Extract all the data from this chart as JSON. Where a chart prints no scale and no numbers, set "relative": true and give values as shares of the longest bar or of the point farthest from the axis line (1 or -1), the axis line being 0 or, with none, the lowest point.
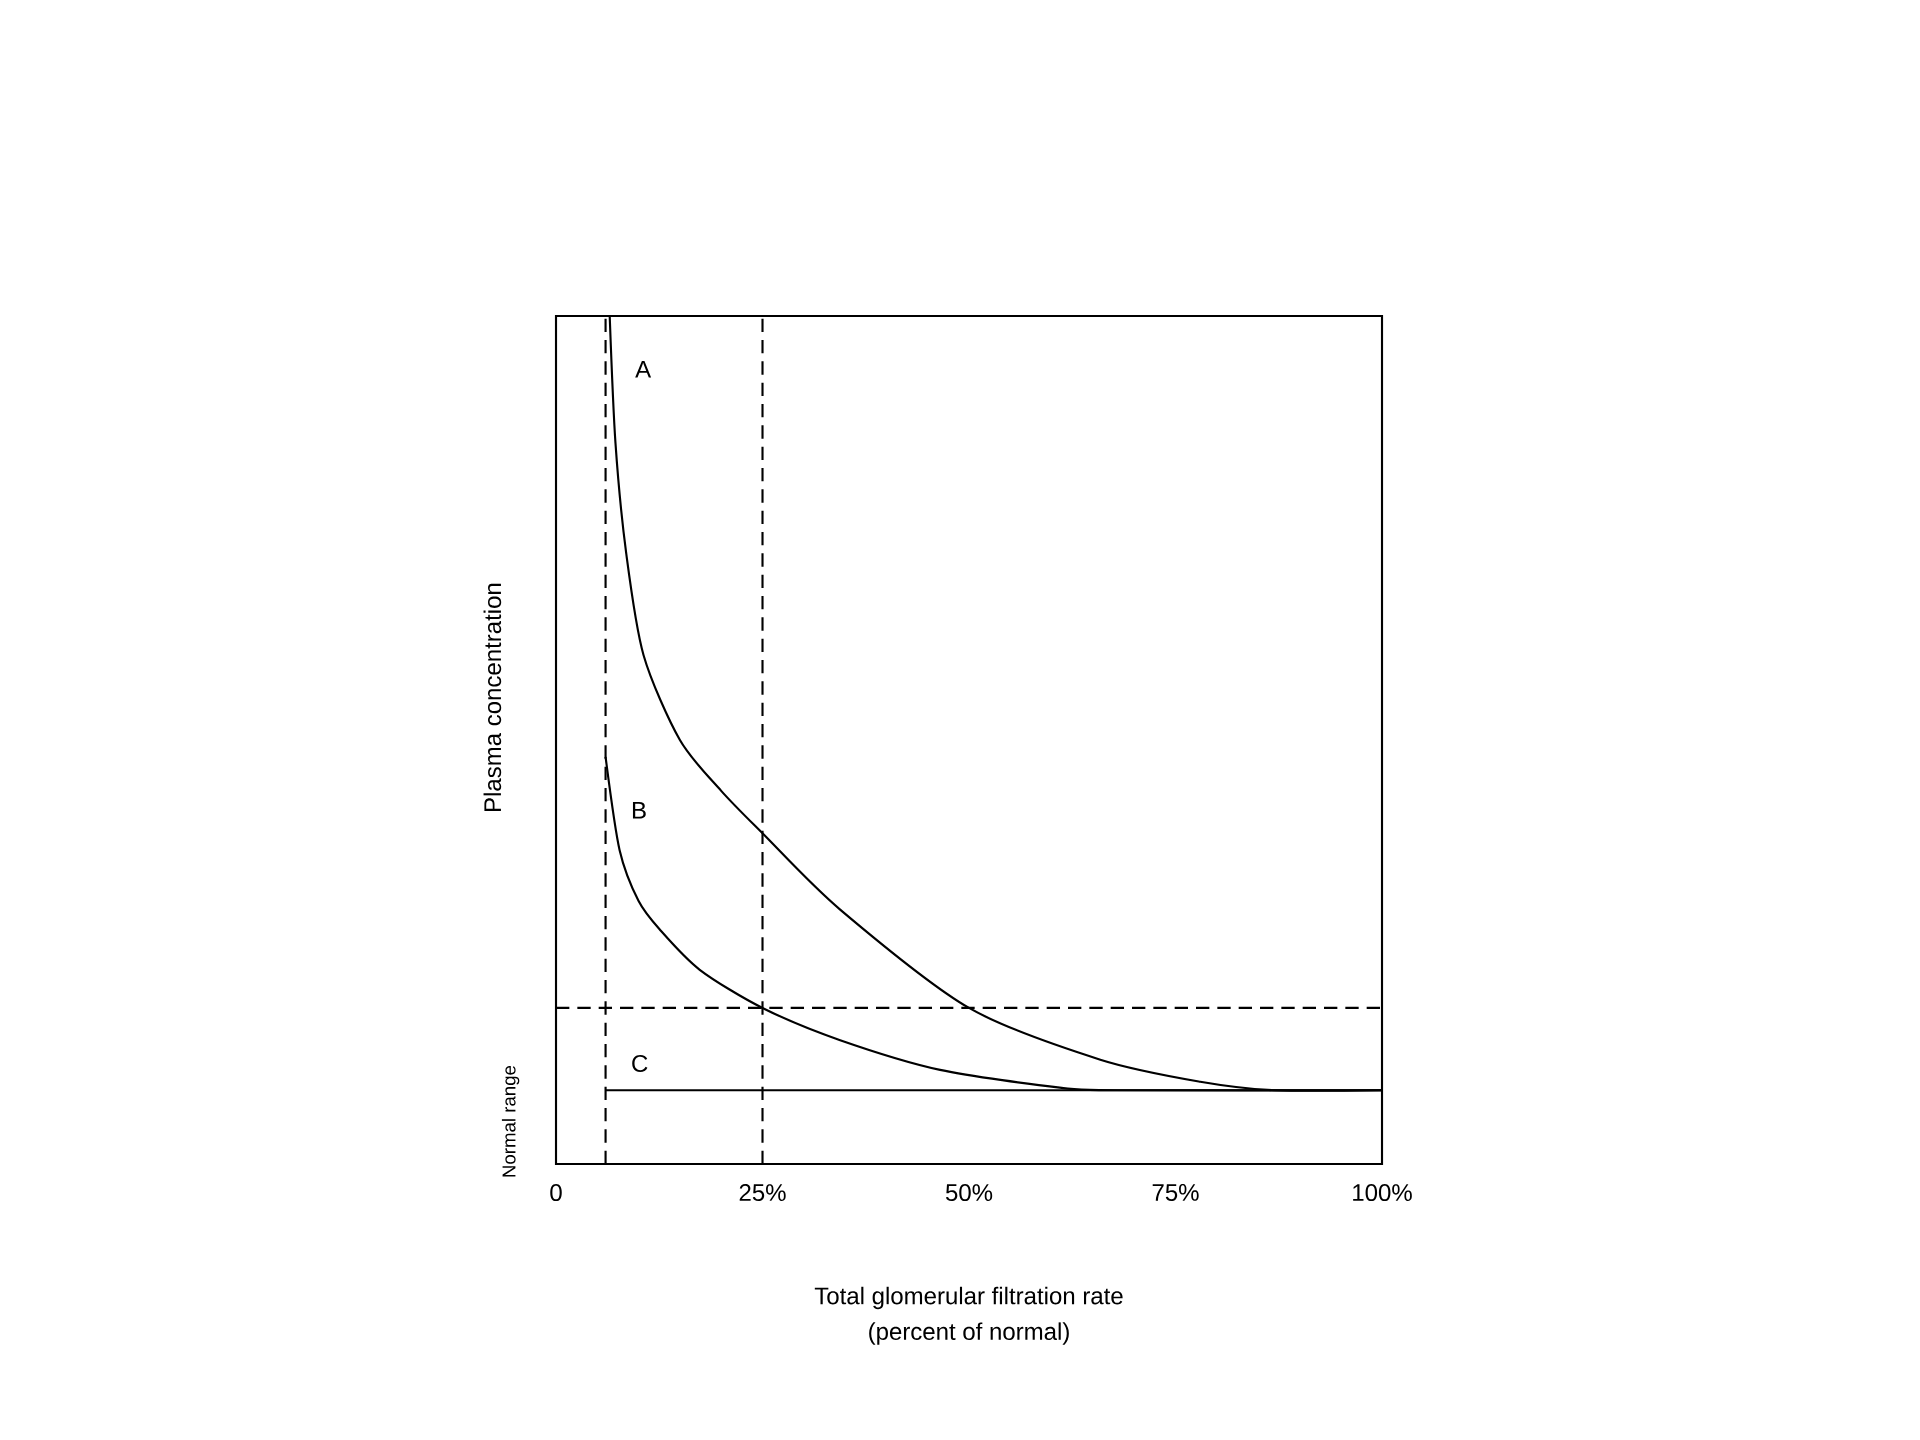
{
  "chart_data": {
    "type": "line",
    "relative": true,
    "xlabel": "Total glomerular filtration rate",
    "ylabel": "Plasma concentration",
    "xlim": [
      0,
      100
    ],
    "xticks": [
      0,
      {
        "value": 25,
        "label": "25%"
      },
      {
        "value": 50,
        "label": "50%"
      },
      {
        "value": 75,
        "label": "75%"
      },
      {
        "value": 100,
        "label": "100%"
      }
    ],
    "series": [
      {
        "name": "A",
        "color": "#000000",
        "x": [
          6.5,
          7.2,
          8.5,
          10.6,
          15,
          20,
          25,
          34.4,
          50,
          65.9,
          78,
          87,
          100
        ],
        "values": [
          1.0,
          0.85,
          0.72,
          0.6,
          0.5,
          0.44,
          0.39,
          0.3,
          0.184,
          0.123,
          0.097,
          0.087,
          0.087
        ]
      },
      {
        "name": "B",
        "color": "#000000",
        "x": [
          6,
          7.7,
          10,
          12.6,
          17.4,
          25,
          34.4,
          46.5,
          61,
          68,
          100
        ],
        "values": [
          0.48,
          0.37,
          0.31,
          0.276,
          0.229,
          0.184,
          0.146,
          0.111,
          0.09,
          0.087,
          0.087
        ]
      },
      {
        "name": "C",
        "color": "#000000",
        "x": [
          6,
          100
        ],
        "values": [
          0.087,
          0.087
        ]
      }
    ],
    "ref_lines": [
      {
        "axis": "x",
        "value": 6,
        "line_style": "dashed"
      },
      {
        "axis": "x",
        "value": 25,
        "line_style": "dashed"
      },
      {
        "axis": "y",
        "value": 0.184,
        "line_style": "dashed"
      }
    ],
    "annotations": [
      "(percent of normal)",
      "Normal range"
    ]
  }
}
